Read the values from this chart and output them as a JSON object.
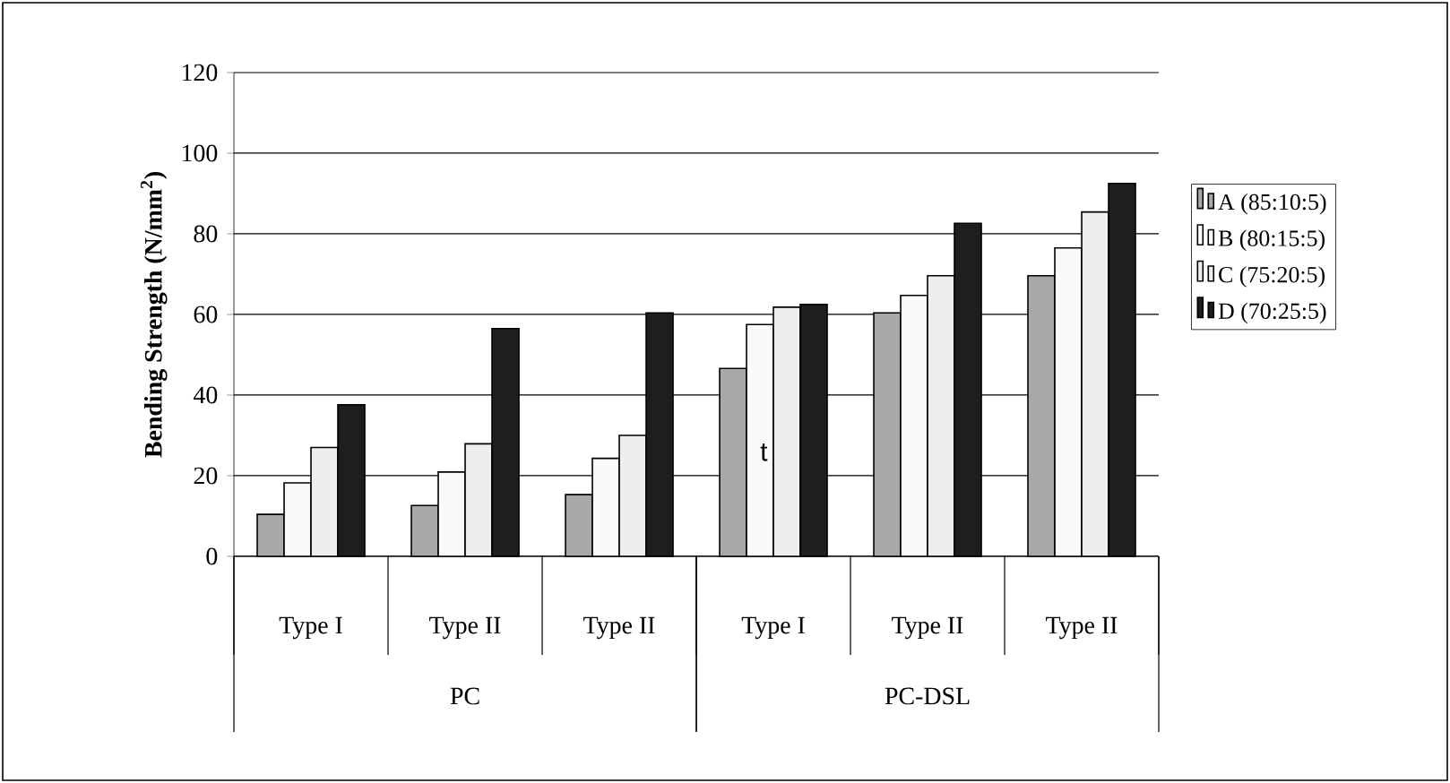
{
  "chart_data": {
    "type": "bar",
    "ylabel": "Bending Strength (N/mm$^{2}$)",
    "categories": [
      "Type I",
      "Type II",
      "Type II",
      "Type I",
      "Type II",
      "Type II"
    ],
    "series": [
      {
        "name": "A (85:10:5)",
        "color": "#a8a8a8",
        "values": [
          10.4,
          12.6,
          15.3,
          46.6,
          60.4,
          69.6
        ]
      },
      {
        "name": "B (80:15:5)",
        "color": "#fafafa",
        "values": [
          18.2,
          20.9,
          24.3,
          57.5,
          64.7,
          76.5
        ]
      },
      {
        "name": "C (75:20:5)",
        "color": "#eeeeee",
        "values": [
          27,
          27.9,
          30,
          61.8,
          69.6,
          85.4
        ]
      },
      {
        "name": "D (70:25:5)",
        "color": "#1e1e1e",
        "values": [
          37.6,
          56.5,
          60.4,
          62.5,
          82.6,
          92.5
        ]
      }
    ],
    "annotations": [
      "PC",
      "PC-DSL",
      "t"
    ],
    "ylim": [
      0,
      120
    ],
    "yticks": [
      0,
      20,
      40,
      60,
      80,
      100,
      120
    ],
    "grid": "y",
    "legend": "right"
  }
}
